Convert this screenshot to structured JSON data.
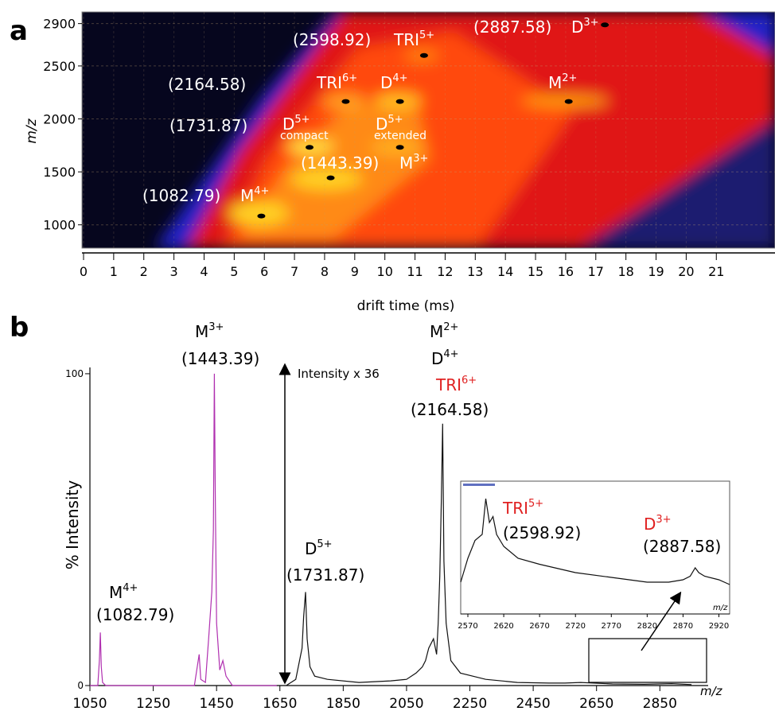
{
  "chart_data": [
    {
      "type": "heatmap",
      "panel_label": "a",
      "xlabel": "drift time (ms)",
      "ylabel": "m/z",
      "xlim": [
        0,
        23
      ],
      "ylim": [
        780,
        3010
      ],
      "xticks": [
        0,
        1,
        2,
        3,
        4,
        5,
        6,
        7,
        8,
        9,
        10,
        11,
        12,
        13,
        14,
        15,
        16,
        17,
        18,
        19,
        20,
        21
      ],
      "yticks": [
        1000,
        1500,
        2000,
        2500,
        2900
      ],
      "grid": true,
      "markers": {
        "x": [
          5.9,
          8.2,
          7.5,
          10.5,
          8.7,
          10.5,
          16.1,
          11.3,
          17.3
        ],
        "y": [
          1082.79,
          1443.39,
          1731.87,
          1731.87,
          2164.58,
          2164.58,
          2164.58,
          2598.92,
          2887.58
        ]
      },
      "annotations": [
        {
          "text": "(1082.79)"
        },
        {
          "ion": "M",
          "charge": "4+"
        },
        {
          "text": "(1443.39)"
        },
        {
          "ion": "M",
          "charge": "3+"
        },
        {
          "ion": "D",
          "charge": "5+"
        },
        {
          "text": "compact"
        },
        {
          "ion": "D",
          "charge": "5+"
        },
        {
          "text": "extended"
        },
        {
          "text": "(1731.87)"
        },
        {
          "text": "(2164.58)"
        },
        {
          "ion": "TRI",
          "charge": "6+"
        },
        {
          "ion": "D",
          "charge": "4+"
        },
        {
          "ion": "M",
          "charge": "2+"
        },
        {
          "text": "(2598.92)"
        },
        {
          "ion": "TRI",
          "charge": "5+"
        },
        {
          "text": "(2887.58)"
        },
        {
          "ion": "D",
          "charge": "3+"
        }
      ]
    },
    {
      "type": "line",
      "panel_label": "b",
      "xlabel": "m/z",
      "ylabel": "% Intensity",
      "xlim": [
        1050,
        2990
      ],
      "ylim": [
        0,
        101
      ],
      "xticks": [
        1050,
        1250,
        1450,
        1650,
        1850,
        2050,
        2250,
        2450,
        2650,
        2850
      ],
      "yticks": [
        0,
        100
      ],
      "series": [
        {
          "color": "#b030b0",
          "x": [
            1050,
            1075,
            1080,
            1083,
            1086,
            1090,
            1100,
            1200,
            1380,
            1395,
            1400,
            1415,
            1425,
            1435,
            1440,
            1443,
            1446,
            1450,
            1460,
            1470,
            1480,
            1500,
            1640
          ],
          "values": [
            0,
            0,
            8,
            17,
            6,
            1,
            0,
            0,
            0,
            10,
            2,
            1,
            15,
            30,
            50,
            100,
            60,
            20,
            5,
            8,
            3,
            0,
            0
          ]
        },
        {
          "color": "#111111",
          "x": [
            1670,
            1700,
            1720,
            1725,
            1731,
            1736,
            1745,
            1760,
            1800,
            1900,
            2000,
            2050,
            2080,
            2100,
            2110,
            2120,
            2135,
            2145,
            2150,
            2155,
            2160,
            2164,
            2168,
            2175,
            2190,
            2220,
            2300,
            2400,
            2500,
            2550,
            2600,
            2700,
            2800,
            2887,
            2950
          ],
          "values": [
            0,
            2,
            12,
            22,
            30,
            15,
            6,
            3,
            2,
            1,
            1.5,
            2,
            4,
            6,
            8,
            12,
            15,
            10,
            20,
            35,
            60,
            84,
            40,
            20,
            8,
            4,
            2,
            1,
            0.8,
            0.8,
            1,
            0.5,
            0.4,
            0.6,
            0.3
          ]
        }
      ],
      "annotations": [
        {
          "ion": "M",
          "charge": "3+"
        },
        {
          "text": "(1443.39)"
        },
        {
          "ion": "M",
          "charge": "2+"
        },
        {
          "ion": "D",
          "charge": "4+"
        },
        {
          "ion": "TRI",
          "charge": "6+",
          "color": "#e02020"
        },
        {
          "text": "(2164.58)"
        },
        {
          "ion": "D",
          "charge": "5+"
        },
        {
          "text": "(1731.87)"
        },
        {
          "ion": "M",
          "charge": "4+"
        },
        {
          "text": "(1082.79)"
        },
        {
          "text": "Intensity x 36"
        }
      ]
    },
    {
      "type": "line",
      "xlabel": "m/z",
      "xlim": [
        2560,
        2935
      ],
      "ylim": [
        0,
        100
      ],
      "xticks": [
        2570,
        2620,
        2670,
        2720,
        2770,
        2820,
        2870,
        2920
      ],
      "series": [
        {
          "color": "#111111",
          "x": [
            2560,
            2570,
            2580,
            2590,
            2595,
            2600,
            2605,
            2610,
            2620,
            2640,
            2670,
            2720,
            2770,
            2820,
            2850,
            2870,
            2880,
            2887,
            2892,
            2900,
            2920,
            2935
          ],
          "values": [
            20,
            40,
            55,
            60,
            90,
            70,
            75,
            60,
            50,
            40,
            35,
            28,
            24,
            20,
            20,
            22,
            25,
            32,
            28,
            25,
            22,
            18
          ]
        }
      ],
      "annotations": [
        {
          "ion": "TRI",
          "charge": "5+",
          "color": "#e02020"
        },
        {
          "text": "(2598.92)"
        },
        {
          "ion": "D",
          "charge": "3+",
          "color": "#e02020"
        },
        {
          "text": "(2887.58)"
        }
      ]
    }
  ]
}
